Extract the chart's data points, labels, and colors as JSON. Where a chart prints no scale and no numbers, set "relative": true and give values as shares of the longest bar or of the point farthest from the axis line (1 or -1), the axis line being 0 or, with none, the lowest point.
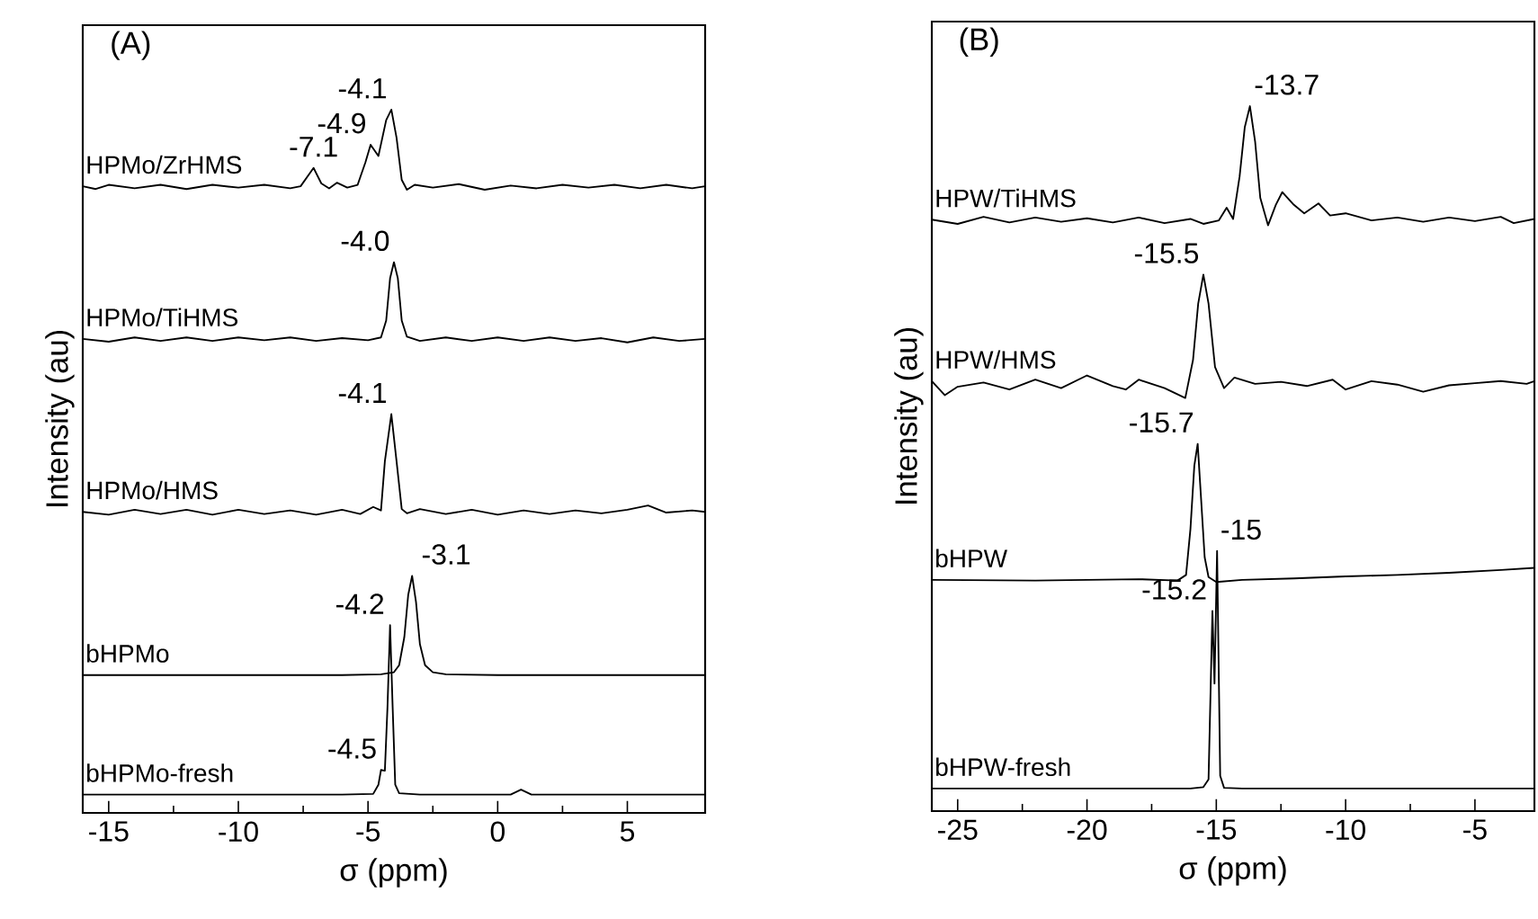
{
  "chart_data": [
    {
      "type": "line",
      "title": "(A)",
      "xlabel": "σ (ppm)",
      "ylabel": "Intensity (au)",
      "relative": true,
      "xlim": [
        -16,
        8
      ],
      "xticks": [
        -15,
        -10,
        -5,
        0,
        5
      ],
      "series": [
        {
          "name": "HPMo/ZrHMS",
          "color": "#000000",
          "x": [
            -16,
            -15.5,
            -15,
            -14,
            -13,
            -12,
            -11,
            -10,
            -9,
            -8,
            -7.6,
            -7.1,
            -6.8,
            -6.5,
            -6.2,
            -5.8,
            -5.4,
            -5.1,
            -4.9,
            -4.6,
            -4.3,
            -4.1,
            -3.9,
            -3.7,
            -3.5,
            -3.2,
            -2.5,
            -1.5,
            -0.5,
            0.5,
            1.5,
            2.5,
            3.5,
            4.5,
            5.5,
            6.5,
            7.5,
            8
          ],
          "values": [
            0.891,
            0.887,
            0.893,
            0.888,
            0.893,
            0.887,
            0.893,
            0.889,
            0.893,
            0.888,
            0.891,
            0.917,
            0.895,
            0.888,
            0.896,
            0.889,
            0.893,
            0.925,
            0.95,
            0.934,
            0.985,
            1.0,
            0.96,
            0.9,
            0.886,
            0.893,
            0.889,
            0.894,
            0.886,
            0.892,
            0.888,
            0.893,
            0.889,
            0.893,
            0.888,
            0.893,
            0.888,
            0.891
          ]
        },
        {
          "name": "HPMo/TiHMS",
          "color": "#000000",
          "x": [
            -16,
            -15,
            -14,
            -13,
            -12,
            -11,
            -10,
            -9,
            -8,
            -7,
            -6,
            -5,
            -4.5,
            -4.3,
            -4.15,
            -4.0,
            -3.85,
            -3.7,
            -3.5,
            -3,
            -2,
            -1,
            0,
            1,
            2,
            3,
            4,
            5,
            6,
            7,
            8
          ],
          "values": [
            0.674,
            0.67,
            0.676,
            0.671,
            0.676,
            0.671,
            0.676,
            0.672,
            0.676,
            0.671,
            0.675,
            0.672,
            0.676,
            0.7,
            0.76,
            0.783,
            0.76,
            0.7,
            0.677,
            0.671,
            0.676,
            0.671,
            0.676,
            0.671,
            0.676,
            0.671,
            0.675,
            0.669,
            0.676,
            0.671,
            0.674
          ]
        },
        {
          "name": "HPMo/HMS",
          "color": "#000000",
          "x": [
            -16,
            -15,
            -14,
            -13,
            -12,
            -11,
            -10,
            -9,
            -8,
            -7,
            -6,
            -5.3,
            -4.8,
            -4.5,
            -4.35,
            -4.1,
            -3.9,
            -3.7,
            -3.5,
            -3,
            -2,
            -1,
            0,
            1,
            2,
            3,
            4,
            5,
            5.8,
            6.5,
            7.5,
            8
          ],
          "values": [
            0.428,
            0.424,
            0.431,
            0.425,
            0.431,
            0.424,
            0.431,
            0.425,
            0.43,
            0.424,
            0.431,
            0.425,
            0.435,
            0.43,
            0.5,
            0.567,
            0.5,
            0.432,
            0.426,
            0.432,
            0.425,
            0.431,
            0.424,
            0.43,
            0.425,
            0.43,
            0.426,
            0.431,
            0.437,
            0.427,
            0.43,
            0.428
          ]
        },
        {
          "name": "bHPMo",
          "color": "#000000",
          "x": [
            -16,
            -10,
            -6,
            -4.5,
            -4,
            -3.8,
            -3.6,
            -3.45,
            -3.3,
            -3.15,
            -3.0,
            -2.8,
            -2.5,
            -2,
            0,
            4,
            8
          ],
          "values": [
            0.196,
            0.196,
            0.196,
            0.197,
            0.2,
            0.21,
            0.25,
            0.31,
            0.337,
            0.3,
            0.24,
            0.21,
            0.2,
            0.197,
            0.196,
            0.196,
            0.196
          ]
        },
        {
          "name": "bHPMo-fresh",
          "color": "#000000",
          "x": [
            -16,
            -6,
            -4.8,
            -4.6,
            -4.5,
            -4.35,
            -4.25,
            -4.15,
            -4.05,
            -3.95,
            -3.8,
            -3,
            0.5,
            0.9,
            1.3,
            8
          ],
          "values": [
            0.026,
            0.026,
            0.027,
            0.04,
            0.061,
            0.06,
            0.15,
            0.267,
            0.15,
            0.04,
            0.028,
            0.026,
            0.026,
            0.033,
            0.026,
            0.026
          ]
        }
      ],
      "annotations": [
        {
          "text": "-7.1",
          "x": -7.1,
          "y": 0.917
        },
        {
          "text": "-4.9",
          "x": -4.9,
          "y": 0.95
        },
        {
          "text": "-4.1",
          "x": -4.1,
          "y": 1.0
        },
        {
          "text": "-4.0",
          "x": -4.0,
          "y": 0.783
        },
        {
          "text": "-4.1",
          "x": -4.1,
          "y": 0.567
        },
        {
          "text": "-3.1",
          "x": -3.1,
          "y": 0.337
        },
        {
          "text": "-4.2",
          "x": -4.2,
          "y": 0.267
        },
        {
          "text": "-4.5",
          "x": -4.5,
          "y": 0.061
        }
      ]
    },
    {
      "type": "line",
      "title": "(B)",
      "xlabel": "σ (ppm)",
      "ylabel": "Intensity (au)",
      "relative": true,
      "xlim": [
        -26,
        -2.7
      ],
      "xticks": [
        -25,
        -20,
        -15,
        -10,
        -5
      ],
      "series": [
        {
          "name": "HPW/TiHMS",
          "color": "#000000",
          "x": [
            -26,
            -25,
            -24,
            -23,
            -22,
            -21,
            -20,
            -19,
            -18,
            -17,
            -16,
            -15.5,
            -14.9,
            -14.6,
            -14.35,
            -14.1,
            -13.9,
            -13.7,
            -13.5,
            -13.3,
            -13.0,
            -12.7,
            -12.45,
            -12.0,
            -11.6,
            -11.05,
            -10.6,
            -10,
            -9,
            -8,
            -7,
            -6,
            -5,
            -4,
            -3.5,
            -2.7
          ],
          "values": [
            0.839,
            0.833,
            0.843,
            0.835,
            0.842,
            0.836,
            0.841,
            0.835,
            0.842,
            0.834,
            0.84,
            0.833,
            0.838,
            0.856,
            0.84,
            0.9,
            0.97,
            1.0,
            0.95,
            0.87,
            0.831,
            0.86,
            0.878,
            0.86,
            0.848,
            0.862,
            0.845,
            0.848,
            0.838,
            0.842,
            0.836,
            0.842,
            0.837,
            0.843,
            0.834,
            0.84
          ]
        },
        {
          "name": "HPW/HMS",
          "color": "#000000",
          "x": [
            -26,
            -25.5,
            -25,
            -24,
            -23,
            -22,
            -21,
            -20,
            -19,
            -18.5,
            -18,
            -17,
            -16.2,
            -15.9,
            -15.7,
            -15.5,
            -15.3,
            -15.05,
            -14.7,
            -14.3,
            -13.5,
            -12.5,
            -11.5,
            -10.5,
            -10,
            -9,
            -8,
            -7,
            -6,
            -5,
            -4,
            -3,
            -2.7
          ],
          "values": [
            0.61,
            0.59,
            0.602,
            0.608,
            0.598,
            0.612,
            0.6,
            0.618,
            0.603,
            0.598,
            0.612,
            0.6,
            0.586,
            0.64,
            0.72,
            0.761,
            0.72,
            0.63,
            0.6,
            0.615,
            0.606,
            0.609,
            0.603,
            0.612,
            0.598,
            0.61,
            0.605,
            0.595,
            0.604,
            0.607,
            0.61,
            0.606,
            0.61
          ]
        },
        {
          "name": "bHPW",
          "color": "#000000",
          "x": [
            -26,
            -22,
            -18,
            -16.5,
            -16.17,
            -16.0,
            -15.85,
            -15.72,
            -15.6,
            -15.45,
            -15.3,
            -15.0,
            -14,
            -12,
            -10,
            -8,
            -6,
            -4,
            -2.7
          ],
          "values": [
            0.328,
            0.327,
            0.329,
            0.327,
            0.335,
            0.4,
            0.49,
            0.521,
            0.45,
            0.36,
            0.332,
            0.325,
            0.328,
            0.33,
            0.333,
            0.335,
            0.338,
            0.342,
            0.345
          ]
        },
        {
          "name": "bHPW-fresh",
          "color": "#000000",
          "x": [
            -26,
            -20,
            -16,
            -15.5,
            -15.3,
            -15.15,
            -15.07,
            -14.97,
            -14.85,
            -14.7,
            -14,
            -8,
            -2.7
          ],
          "values": [
            0.032,
            0.032,
            0.032,
            0.034,
            0.045,
            0.284,
            0.181,
            0.369,
            0.05,
            0.033,
            0.032,
            0.032,
            0.032
          ]
        }
      ],
      "annotations": [
        {
          "text": "-13.7",
          "x": -13.7,
          "y": 1.0
        },
        {
          "text": "-15.5",
          "x": -15.5,
          "y": 0.761
        },
        {
          "text": "-15.7",
          "x": -15.7,
          "y": 0.521
        },
        {
          "text": "-15",
          "x": -15,
          "y": 0.369
        },
        {
          "text": "-15.2",
          "x": -15.2,
          "y": 0.284
        }
      ]
    }
  ]
}
